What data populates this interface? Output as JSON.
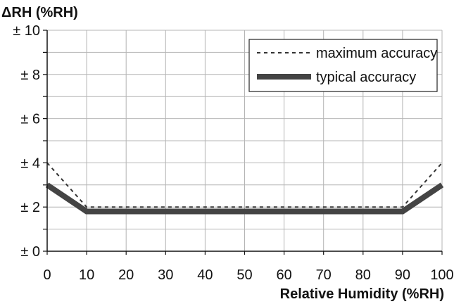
{
  "chart_data": {
    "type": "line",
    "title": "",
    "ylabel": "ΔRH (%RH)",
    "xlabel": "Relative Humidity (%RH)",
    "xlim": [
      0,
      100
    ],
    "ylim": [
      0,
      10
    ],
    "x_ticks": [
      "0",
      "10",
      "20",
      "30",
      "40",
      "50",
      "60",
      "70",
      "80",
      "90",
      "100"
    ],
    "y_ticks": [
      "± 0",
      "± 2",
      "± 4",
      "± 6",
      "± 8",
      "± 10"
    ],
    "grid": true,
    "legend_position": "top-right",
    "series": [
      {
        "name": "maximum accuracy",
        "style": "dashed",
        "color": "#333333",
        "x": [
          0,
          10,
          90,
          100
        ],
        "y": [
          4,
          2,
          2,
          4
        ]
      },
      {
        "name": "typical accuracy",
        "style": "solid-thick",
        "color": "#444444",
        "x": [
          0,
          10,
          90,
          100
        ],
        "y": [
          3,
          1.8,
          1.8,
          3
        ]
      }
    ]
  }
}
